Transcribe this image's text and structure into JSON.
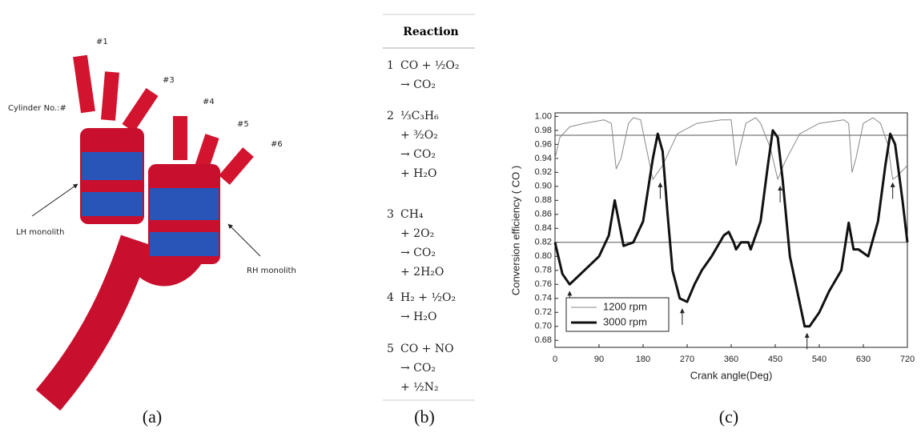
{
  "panel_a": {
    "labels": [
      "#1",
      "#3",
      "#4",
      "#5",
      "#6",
      "Cylinder No.:#",
      "LH monolith",
      "RH monolith"
    ],
    "caption": "(a)"
  },
  "panel_b": {
    "header": "Reaction",
    "caption": "(b)",
    "rows": [
      {
        "number": 1,
        "lines": [
          "CO + ½O₂",
          "→ CO₂"
        ]
      },
      {
        "number": 2,
        "lines": [
          "⅓C₃H₆",
          "+ ³⁄₂O₂",
          "→ CO₂",
          "+ H₂O"
        ]
      },
      {
        "number": 3,
        "lines": [
          "CH₄",
          "+ 2O₂",
          "→ CO₂",
          "+ 2H₂O"
        ]
      },
      {
        "number": 4,
        "lines": [
          "H₂ + ½O₂",
          "→ H₂O"
        ]
      },
      {
        "number": 5,
        "lines": [
          "CO + NO",
          "→ CO₂",
          "+ ½N₂"
        ]
      }
    ]
  },
  "chart_data": {
    "type": "line",
    "caption": "(c)",
    "xlabel": "Crank angle(Deg)",
    "ylabel": "Conversion efficiency ( CO )",
    "xlim": [
      0,
      720
    ],
    "xticks": [
      0,
      90,
      180,
      270,
      360,
      450,
      540,
      630,
      720
    ],
    "ylim": [
      0.67,
      1.005
    ],
    "yticks": [
      0.68,
      {
        "value": 0.7,
        "label": "0.70"
      },
      0.72,
      0.74,
      0.76,
      0.78,
      {
        "value": 0.8,
        "label": "0.80"
      },
      0.82,
      0.84,
      0.86,
      0.88,
      {
        "value": 0.9,
        "label": "0.90"
      },
      0.92,
      0.94,
      0.96,
      0.98,
      {
        "value": 1,
        "label": "1.00"
      }
    ],
    "reference_lines": [
      0.973,
      0.82
    ],
    "legend": "lower left",
    "series": [
      {
        "name": "1200 rpm",
        "color": "#888888",
        "width": 1,
        "x": [
          0,
          10,
          30,
          60,
          100,
          115,
          125,
          135,
          150,
          160,
          175,
          185,
          200,
          220,
          250,
          290,
          340,
          360,
          370,
          380,
          390,
          410,
          420,
          440,
          455,
          470,
          500,
          540,
          590,
          600,
          607,
          615,
          630,
          650,
          665,
          680,
          690,
          700,
          720
        ],
        "values": [
          0.94,
          0.97,
          0.985,
          0.99,
          0.995,
          0.99,
          0.925,
          0.94,
          0.99,
          0.998,
          0.995,
          0.96,
          0.91,
          0.93,
          0.975,
          0.99,
          0.995,
          0.995,
          0.93,
          0.96,
          0.99,
          0.998,
          0.99,
          0.955,
          0.91,
          0.935,
          0.975,
          0.99,
          0.995,
          0.99,
          0.92,
          0.94,
          0.99,
          0.998,
          0.99,
          0.96,
          0.91,
          0.915,
          0.93
        ]
      },
      {
        "name": "3000 rpm",
        "color": "#111111",
        "width": 3,
        "x": [
          0,
          15,
          30,
          60,
          90,
          110,
          122,
          140,
          160,
          180,
          200,
          210,
          220,
          230,
          240,
          255,
          270,
          285,
          300,
          320,
          345,
          355,
          365,
          370,
          380,
          395,
          400,
          420,
          435,
          445,
          455,
          465,
          480,
          495,
          510,
          520,
          540,
          560,
          585,
          600,
          610,
          620,
          640,
          660,
          675,
          685,
          695,
          710,
          720
        ],
        "values": [
          0.82,
          0.775,
          0.76,
          0.78,
          0.8,
          0.83,
          0.88,
          0.815,
          0.82,
          0.85,
          0.94,
          0.975,
          0.95,
          0.86,
          0.78,
          0.74,
          0.735,
          0.76,
          0.78,
          0.8,
          0.83,
          0.835,
          0.82,
          0.81,
          0.82,
          0.82,
          0.81,
          0.85,
          0.93,
          0.98,
          0.97,
          0.91,
          0.8,
          0.75,
          0.7,
          0.7,
          0.72,
          0.75,
          0.78,
          0.848,
          0.81,
          0.81,
          0.8,
          0.85,
          0.93,
          0.975,
          0.96,
          0.88,
          0.82
        ]
      }
    ],
    "arrows": [
      {
        "x": 30,
        "y": 0.75
      },
      {
        "x": 260,
        "y": 0.725
      },
      {
        "x": 515,
        "y": 0.69
      },
      {
        "x": 215,
        "y": 0.905
      },
      {
        "x": 460,
        "y": 0.9
      },
      {
        "x": 690,
        "y": 0.905
      }
    ]
  }
}
